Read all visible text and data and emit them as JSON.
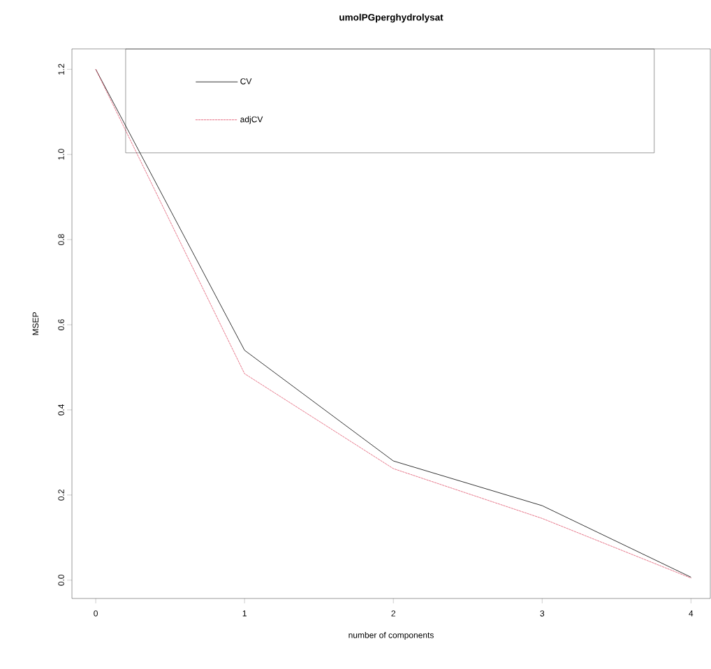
{
  "chart_data": {
    "type": "line",
    "title": "umolPGperghydrolysat",
    "xlabel": "number of components",
    "ylabel": "MSEP",
    "x": [
      0,
      1,
      2,
      3,
      4
    ],
    "series": [
      {
        "name": "CV",
        "color": "#000000",
        "line_style": "solid",
        "values": [
          1.2,
          0.54,
          0.28,
          0.175,
          0.007
        ]
      },
      {
        "name": "adjCV",
        "color": "#df536b",
        "line_style": "dashed",
        "values": [
          1.2,
          0.485,
          0.262,
          0.145,
          0.005
        ]
      }
    ],
    "xlim": [
      -0.16,
      4.13
    ],
    "ylim": [
      -0.043,
      1.248
    ],
    "xticks": [
      0,
      1,
      2,
      3,
      4
    ],
    "yticks": [
      {
        "value": 0,
        "label": "0.0"
      },
      {
        "value": 0.2,
        "label": "0.2"
      },
      {
        "value": 0.4,
        "label": "0.4"
      },
      {
        "value": 0.6,
        "label": "0.6"
      },
      {
        "value": 0.8,
        "label": "0.8"
      },
      {
        "value": 1,
        "label": "1.0"
      },
      {
        "value": 1.2,
        "label": "1.2"
      }
    ],
    "grid": false,
    "legend": "top",
    "marker": "none"
  }
}
